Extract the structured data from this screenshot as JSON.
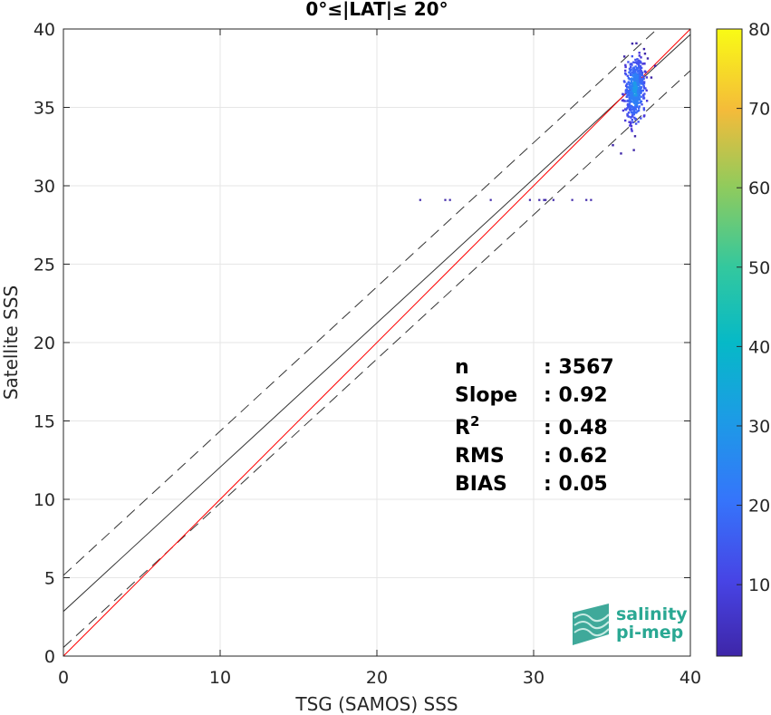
{
  "chart_data": {
    "type": "scatter",
    "title": "0°≤|LAT|≤ 20°",
    "xlabel": "TSG (SAMOS) SSS",
    "ylabel": "Satellite SSS",
    "xlim": [
      0,
      40
    ],
    "ylim": [
      0,
      40
    ],
    "xticks": [
      "0",
      "10",
      "20",
      "30",
      "40"
    ],
    "yticks": [
      "0",
      "5",
      "10",
      "15",
      "20",
      "25",
      "30",
      "35",
      "40"
    ],
    "grid": true,
    "colorbar": {
      "range": [
        1,
        80
      ],
      "ticks": [
        "10",
        "20",
        "30",
        "40",
        "50",
        "60",
        "70",
        "80"
      ],
      "colormap": "parula"
    },
    "lines": {
      "identity": {
        "slope": 1.0,
        "intercept": 0.0,
        "color": "#ff0000"
      },
      "fit": {
        "slope": 0.92,
        "intercept": 2.85,
        "color": "#000000"
      },
      "fit_upper_bound": {
        "slope": 0.92,
        "intercept": 5.15,
        "style": "dashed"
      },
      "fit_lower_bound": {
        "slope": 0.92,
        "intercept": 0.55,
        "style": "dashed"
      }
    },
    "cluster": {
      "x_center": 36.4,
      "y_center": 36.2,
      "x_spread": 0.55,
      "y_spread": 1.7
    },
    "outliers": [
      {
        "x": 22.7,
        "y": 29.1
      },
      {
        "x": 24.3,
        "y": 29.1
      },
      {
        "x": 24.6,
        "y": 29.1
      },
      {
        "x": 27.2,
        "y": 29.1
      },
      {
        "x": 29.7,
        "y": 29.1
      },
      {
        "x": 30.3,
        "y": 29.1
      },
      {
        "x": 30.6,
        "y": 29.1
      },
      {
        "x": 30.7,
        "y": 29.1
      },
      {
        "x": 31.2,
        "y": 29.1
      },
      {
        "x": 32.4,
        "y": 29.1
      },
      {
        "x": 33.3,
        "y": 29.1
      },
      {
        "x": 33.6,
        "y": 29.1
      }
    ],
    "stats": [
      {
        "label": "n",
        "value": ": 3567"
      },
      {
        "label": "Slope",
        "value": ": 0.92"
      },
      {
        "label": "R",
        "sup": "2",
        "value": ": 0.48"
      },
      {
        "label": "RMS",
        "value": ": 0.62"
      },
      {
        "label": "BIAS",
        "value": ": 0.05"
      }
    ]
  },
  "logo": {
    "line1": "salinity",
    "line2": "pi-mep"
  }
}
